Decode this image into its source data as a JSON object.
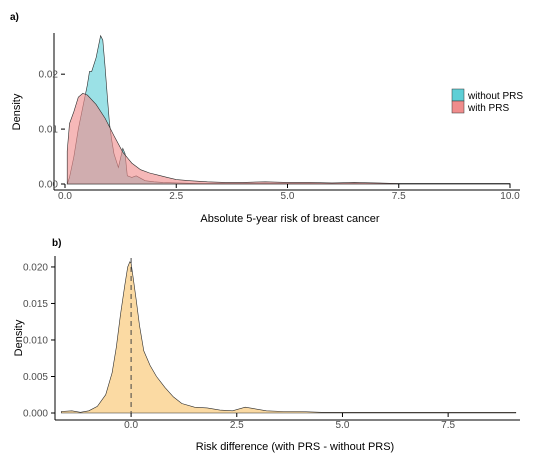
{
  "chart_data": [
    {
      "panel": "a)",
      "type": "area",
      "xlabel": "Absolute 5-year risk of breast cancer",
      "ylabel": "Density",
      "xlim": [
        0,
        10
      ],
      "ylim": [
        0,
        0.0275
      ],
      "xticks": [
        "0.0",
        "2.5",
        "5.0",
        "7.5",
        "10.0"
      ],
      "xtick_values": [
        0,
        2.5,
        5,
        7.5,
        10
      ],
      "yticks": [
        "0.00",
        "0.01",
        "0.02"
      ],
      "ytick_values": [
        0,
        0.01,
        0.02
      ],
      "grid": false,
      "legend_position": "right",
      "series": [
        {
          "name": "without PRS",
          "color": "#5ecfd6",
          "x": [
            0.05,
            0.1,
            0.2,
            0.3,
            0.4,
            0.5,
            0.55,
            0.6,
            0.7,
            0.8,
            0.85,
            0.9,
            0.95,
            1.0,
            1.05,
            1.1,
            1.2,
            1.3,
            1.35,
            1.4,
            1.5,
            1.6,
            1.8,
            2.0,
            2.2,
            2.5,
            3.0,
            4.0,
            5.0,
            6.0,
            7.0,
            8.0,
            9.0,
            10.0
          ],
          "y": [
            0.0,
            0.0012,
            0.005,
            0.01,
            0.014,
            0.018,
            0.0205,
            0.0205,
            0.023,
            0.027,
            0.0262,
            0.0215,
            0.016,
            0.011,
            0.008,
            0.0055,
            0.003,
            0.0065,
            0.0055,
            0.0015,
            0.0012,
            0.0015,
            0.0006,
            0.0004,
            0.0003,
            0.0002,
            0.0001,
            0.0001,
            0.0001,
            0.0001,
            0.0001,
            0.0001,
            0.0001,
            0.0001
          ]
        },
        {
          "name": "with PRS",
          "color": "#f08c8c",
          "x": [
            0.05,
            0.1,
            0.2,
            0.3,
            0.4,
            0.5,
            0.7,
            0.9,
            1.1,
            1.3,
            1.5,
            1.7,
            1.9,
            2.1,
            2.3,
            2.5,
            2.8,
            3.2,
            3.6,
            4.0,
            4.5,
            5.0,
            5.5,
            6.0,
            6.5,
            7.0,
            7.5,
            8.0,
            8.5,
            9.0,
            9.5,
            10.0
          ],
          "y": [
            0.006,
            0.011,
            0.0132,
            0.0158,
            0.0165,
            0.0162,
            0.0145,
            0.012,
            0.0088,
            0.0058,
            0.0038,
            0.0026,
            0.002,
            0.0016,
            0.0012,
            0.0008,
            0.0006,
            0.0004,
            0.0003,
            0.0003,
            0.0004,
            0.0003,
            0.0003,
            0.0002,
            0.0003,
            0.0002,
            0.0001,
            0.0001,
            0.0001,
            0.0001,
            0.0001,
            0.0001
          ]
        }
      ]
    },
    {
      "panel": "b)",
      "type": "area",
      "xlabel": "Risk difference (with PRS -  without PRS)",
      "ylabel": "Density",
      "xlim": [
        -1.8,
        9.2
      ],
      "ylim": [
        0,
        0.0215
      ],
      "xticks": [
        "0.0",
        "2.5",
        "5.0",
        "7.5"
      ],
      "xtick_values": [
        0,
        2.5,
        5,
        7.5
      ],
      "yticks": [
        "0.000",
        "0.005",
        "0.010",
        "0.015",
        "0.020"
      ],
      "ytick_values": [
        0,
        0.005,
        0.01,
        0.015,
        0.02
      ],
      "grid": false,
      "reference_line_x": 0,
      "series": [
        {
          "color": "#f9c36b",
          "x": [
            -1.65,
            -1.4,
            -1.2,
            -1.0,
            -0.8,
            -0.6,
            -0.45,
            -0.35,
            -0.25,
            -0.15,
            -0.08,
            -0.03,
            0.0,
            0.05,
            0.12,
            0.2,
            0.3,
            0.45,
            0.6,
            0.8,
            1.0,
            1.2,
            1.5,
            1.8,
            2.1,
            2.4,
            2.7,
            2.9,
            3.2,
            3.6,
            4.0,
            4.5,
            5.0,
            5.5,
            6.0,
            6.5,
            7.0,
            7.5,
            8.0,
            8.5,
            9.1
          ],
          "y": [
            0.0002,
            0.0003,
            0.0001,
            0.0003,
            0.0009,
            0.0025,
            0.0055,
            0.009,
            0.0135,
            0.0175,
            0.02,
            0.0207,
            0.0205,
            0.0185,
            0.0155,
            0.012,
            0.0085,
            0.0065,
            0.005,
            0.0035,
            0.0022,
            0.0013,
            0.0008,
            0.0007,
            0.0004,
            0.0003,
            0.0008,
            0.0006,
            0.0003,
            0.0002,
            0.0002,
            0.0001,
            0.0001,
            0.0001,
            0.0001,
            0.0001,
            0.0001,
            0.0001,
            0.0001,
            0.0001,
            0.0001
          ]
        }
      ]
    }
  ]
}
